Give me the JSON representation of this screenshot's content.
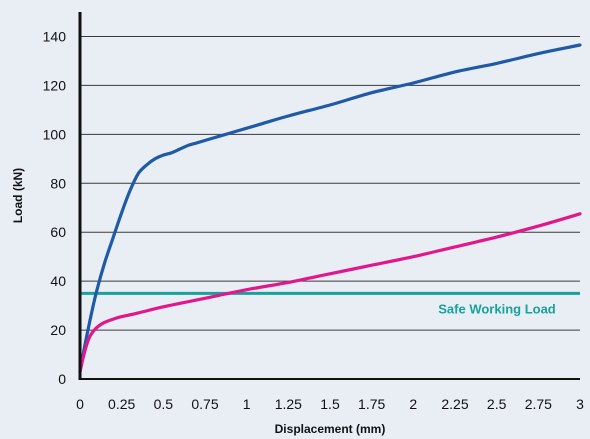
{
  "chart_data": {
    "type": "line",
    "xlabel": "Displacement (mm)",
    "ylabel": "Load (kN)",
    "xlim": [
      0,
      3
    ],
    "ylim": [
      0,
      150
    ],
    "x_ticks": [
      "0",
      "0.25",
      "0.5",
      "0.75",
      "1",
      "1.25",
      "1.5",
      "1.75",
      "2",
      "2.25",
      "2.5",
      "2.75",
      "3"
    ],
    "y_ticks": [
      "0",
      "20",
      "40",
      "60",
      "80",
      "100",
      "120",
      "140"
    ],
    "grid": "horizontal",
    "series": [
      {
        "color": "#1f5aa6",
        "x": [
          0,
          0.03,
          0.06,
          0.1,
          0.15,
          0.2,
          0.25,
          0.3,
          0.35,
          0.4,
          0.45,
          0.5,
          0.55,
          0.6,
          0.65,
          0.7,
          0.8,
          0.9,
          1.0,
          1.1,
          1.25,
          1.5,
          1.75,
          2.0,
          2.25,
          2.5,
          2.75,
          3.0
        ],
        "y": [
          3,
          14,
          24,
          36,
          48,
          58,
          68,
          77,
          84,
          87.5,
          90,
          91.5,
          92.5,
          94,
          95.5,
          96.5,
          98.5,
          100.5,
          102.5,
          104.5,
          107.5,
          112,
          117,
          121,
          125.5,
          129,
          133,
          136.5
        ]
      },
      {
        "color": "#e0188c",
        "x": [
          0,
          0.02,
          0.04,
          0.06,
          0.08,
          0.1,
          0.13,
          0.16,
          0.2,
          0.25,
          0.35,
          0.5,
          0.75,
          1.0,
          1.25,
          1.5,
          1.75,
          2.0,
          2.25,
          2.5,
          2.75,
          3.0
        ],
        "y": [
          3,
          9,
          14,
          17.5,
          19.5,
          21,
          22.5,
          23.5,
          24.5,
          25.5,
          27,
          29.5,
          33,
          36.5,
          39.5,
          43,
          46.5,
          50,
          54,
          58,
          62.5,
          67.5
        ]
      }
    ],
    "reference_line": {
      "y": 35,
      "label": "Safe Working Load",
      "color": "#17a39b"
    }
  }
}
